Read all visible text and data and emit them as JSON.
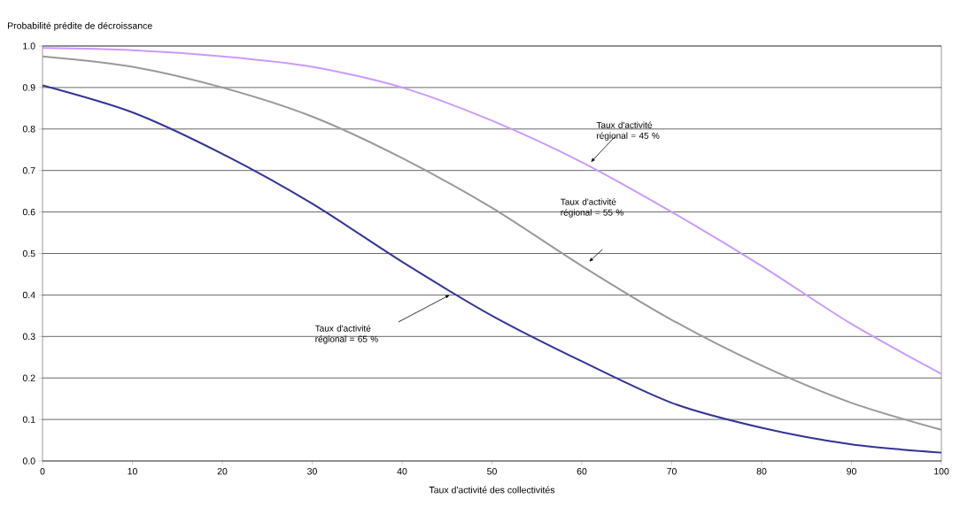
{
  "chart_data": {
    "type": "line",
    "xlabel": "Taux d'activité des collectivités",
    "ylabel": "Probabilité prédite de décroissance",
    "x": [
      0,
      10,
      20,
      30,
      40,
      50,
      60,
      70,
      80,
      90,
      100
    ],
    "series": [
      {
        "color": "#cc99ff",
        "values": [
          0.995,
          0.99,
          0.975,
          0.95,
          0.9,
          0.82,
          0.72,
          0.6,
          0.47,
          0.33,
          0.21
        ]
      },
      {
        "color": "#999999",
        "values": [
          0.975,
          0.95,
          0.9,
          0.83,
          0.73,
          0.61,
          0.47,
          0.34,
          0.23,
          0.14,
          0.075
        ]
      },
      {
        "color": "#333399",
        "values": [
          0.905,
          0.84,
          0.74,
          0.62,
          0.48,
          0.35,
          0.24,
          0.14,
          0.08,
          0.04,
          0.02
        ]
      }
    ],
    "xlim": [
      0,
      100
    ],
    "ylim": [
      0,
      1
    ],
    "xticks": [
      0,
      10,
      20,
      30,
      40,
      50,
      60,
      70,
      80,
      90,
      100
    ],
    "yticks": [
      {
        "value": 0,
        "label": "0.0"
      },
      {
        "value": 0.1,
        "label": "0.1"
      },
      {
        "value": 0.2,
        "label": "0.2"
      },
      {
        "value": 0.3,
        "label": "0.3"
      },
      {
        "value": 0.4,
        "label": "0.4"
      },
      {
        "value": 0.5,
        "label": "0.5"
      },
      {
        "value": 0.6,
        "label": "0.6"
      },
      {
        "value": 0.7,
        "label": "0.7"
      },
      {
        "value": 0.8,
        "label": "0.8"
      },
      {
        "value": 0.9,
        "label": "0.9"
      },
      {
        "value": 1,
        "label": "1.0"
      }
    ],
    "grid": "y",
    "marker": "none",
    "line_style": "solid",
    "annotations": [
      "Taux d'activité régional = 45 %",
      "Taux d'activité régional = 55 %",
      "Taux d'activité régional = 65 %"
    ]
  }
}
